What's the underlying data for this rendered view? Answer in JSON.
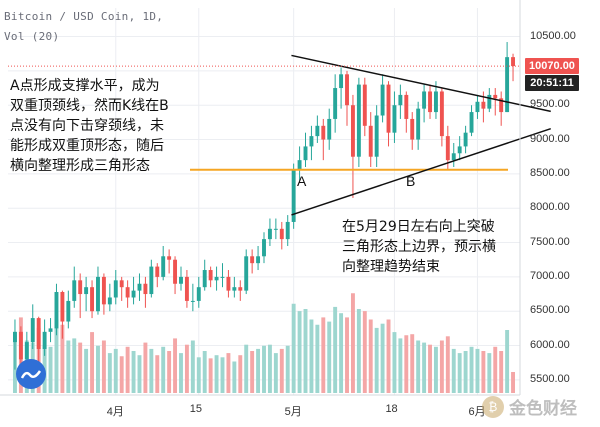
{
  "header": {
    "symbol": "Bitcoin / USD Coin, 1D,",
    "volume": "Vol (20)"
  },
  "annotations": {
    "left_lines": [
      "A点形成支撑水平，成为",
      "双重顶颈线，然而K线在B",
      "点没有向下击穿颈线，未",
      "能形成双重顶形态，随后",
      "横向整理形成三角形态"
    ],
    "right_lines": [
      "在5月29日左右向上突破",
      "三角形态上边界，预示横",
      "向整理趋势结束"
    ],
    "marker_a": "A",
    "marker_b": "B"
  },
  "price_badge": {
    "price": "10070.00",
    "countdown": "20:51:11",
    "price_color": "#ef5350",
    "countdown_color": "#222222"
  },
  "watermark": {
    "text": "金色财经",
    "icon": "gold-coin-icon"
  },
  "colors": {
    "up": "#26a69a",
    "down": "#ef5350",
    "support": "#f5a623",
    "vol_up": "#9dd6cf",
    "vol_down": "#f4a6a6"
  },
  "chart_data": {
    "type": "candlestick",
    "x_ticks": [
      {
        "index": 17,
        "label": "4月"
      },
      {
        "index": 31,
        "label": "15"
      },
      {
        "index": 47,
        "label": "5月"
      },
      {
        "index": 64,
        "label": "18"
      },
      {
        "index": 78,
        "label": "6月"
      }
    ],
    "y_ticks": [
      5500,
      6000,
      6500,
      7000,
      7500,
      8000,
      8500,
      9000,
      9500,
      10000,
      10500
    ],
    "ylim": [
      5280,
      10770
    ],
    "support_level": 8560,
    "current_price": 10070,
    "triangle": {
      "upper": [
        {
          "index": 50,
          "price": 10050
        },
        {
          "index": 88,
          "price": 9440
        }
      ],
      "lower": [
        {
          "index": 50,
          "price": 7990
        },
        {
          "index": 88,
          "price": 9100
        }
      ]
    },
    "points": {
      "A": {
        "index": 57,
        "price": 8420
      },
      "B": {
        "index": 72,
        "price": 8620
      }
    },
    "close": [
      6200,
      5800,
      6050,
      6400,
      5950,
      6200,
      6250,
      6780,
      6350,
      6650,
      6950,
      6750,
      6850,
      6500,
      7000,
      6600,
      6700,
      6950,
      6850,
      6700,
      6800,
      6900,
      6750,
      7150,
      7000,
      7300,
      7250,
      6900,
      7000,
      6650,
      6650,
      6850,
      7100,
      6950,
      7000,
      7000,
      6800,
      6850,
      6800,
      7300,
      7200,
      7300,
      7550,
      7700,
      7700,
      7550,
      7800,
      8550,
      8700,
      8900,
      9050,
      9200,
      9000,
      9300,
      9750,
      9950,
      9500,
      8750,
      9800,
      9200,
      8750,
      9350,
      9800,
      9100,
      9500,
      9650,
      9300,
      9000,
      9450,
      9700,
      9400,
      9700,
      9050,
      8700,
      8800,
      8900,
      9100,
      9400,
      9550,
      9450,
      9650,
      9600,
      9400,
      10200,
      10070
    ],
    "high": [
      6380,
      6280,
      6200,
      6600,
      6420,
      6380,
      6400,
      6900,
      6800,
      6800,
      7150,
      7050,
      7000,
      6950,
      7150,
      7050,
      6900,
      7100,
      7000,
      6950,
      7000,
      7050,
      7000,
      7250,
      7200,
      7450,
      7400,
      7300,
      7150,
      7100,
      6900,
      7000,
      7250,
      7150,
      7150,
      7200,
      7100,
      7000,
      6950,
      7400,
      7400,
      7450,
      7650,
      7850,
      7850,
      7800,
      7900,
      8650,
      8900,
      9100,
      9200,
      9350,
      9300,
      9450,
      9950,
      10050,
      10000,
      9650,
      9900,
      9900,
      9400,
      9500,
      9950,
      9850,
      9700,
      9800,
      9700,
      9400,
      9550,
      9800,
      9800,
      9850,
      9750,
      9200,
      8950,
      9050,
      9200,
      9500,
      9650,
      9700,
      9750,
      9750,
      9700,
      10420,
      10250
    ],
    "low": [
      5650,
      5550,
      5650,
      5950,
      5700,
      5850,
      6050,
      6150,
      6100,
      6250,
      6550,
      6400,
      6500,
      6400,
      6450,
      6450,
      6500,
      6600,
      6650,
      6550,
      6600,
      6650,
      6550,
      6700,
      6850,
      6950,
      7050,
      6750,
      6800,
      6550,
      6500,
      6550,
      6800,
      6850,
      6800,
      6850,
      6700,
      6700,
      6650,
      6750,
      7050,
      7100,
      7200,
      7450,
      7550,
      7400,
      7450,
      7700,
      8400,
      8600,
      8700,
      8950,
      8700,
      8850,
      9100,
      9450,
      9200,
      8150,
      8600,
      9050,
      8600,
      8600,
      9250,
      8900,
      8950,
      9300,
      9100,
      8850,
      8850,
      9250,
      9300,
      9300,
      8900,
      8550,
      8600,
      8700,
      8800,
      9050,
      9300,
      9250,
      9400,
      9350,
      9200,
      9400,
      9850
    ],
    "volume": [
      0.55,
      0.72,
      0.5,
      0.48,
      0.62,
      0.45,
      0.44,
      0.7,
      0.65,
      0.5,
      0.52,
      0.48,
      0.42,
      0.58,
      0.45,
      0.5,
      0.38,
      0.42,
      0.35,
      0.44,
      0.4,
      0.36,
      0.48,
      0.42,
      0.36,
      0.44,
      0.4,
      0.52,
      0.38,
      0.46,
      0.5,
      0.34,
      0.4,
      0.33,
      0.36,
      0.34,
      0.38,
      0.3,
      0.36,
      0.46,
      0.4,
      0.42,
      0.45,
      0.46,
      0.38,
      0.42,
      0.45,
      0.85,
      0.78,
      0.8,
      0.7,
      0.65,
      0.72,
      0.68,
      0.82,
      0.76,
      0.72,
      0.95,
      0.8,
      0.78,
      0.7,
      0.62,
      0.66,
      0.7,
      0.58,
      0.52,
      0.55,
      0.56,
      0.5,
      0.48,
      0.46,
      0.44,
      0.5,
      0.54,
      0.42,
      0.38,
      0.4,
      0.44,
      0.42,
      0.4,
      0.38,
      0.44,
      0.4,
      0.6,
      0.2
    ]
  }
}
